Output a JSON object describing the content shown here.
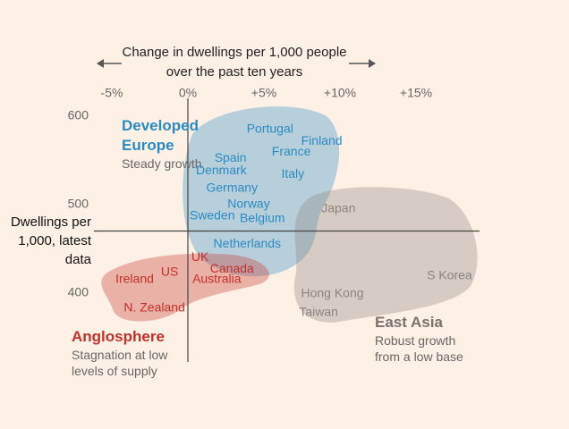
{
  "chart_data": {
    "type": "scatter",
    "x_title": "Change in dwellings per 1,000 people over the past ten years",
    "y_title": "Dwellings per 1,000, latest data",
    "xlim": [
      -6,
      19
    ],
    "xticks": [
      {
        "value": -5,
        "label": "-5%"
      },
      {
        "value": 0,
        "label": "0%"
      },
      {
        "value": 5,
        "label": "+5%"
      },
      {
        "value": 10,
        "label": "+10%"
      },
      {
        "value": 15,
        "label": "+15%"
      }
    ],
    "ylim": [
      250,
      620
    ],
    "yticks": [
      400,
      500,
      600
    ],
    "reference_lines": {
      "x": 0,
      "y": 470
    },
    "series": [
      {
        "name": "Developed Europe",
        "description": "Steady growth",
        "color": "#2a8bc4",
        "labels": [
          "Portugal",
          "Finland",
          "France",
          "Spain",
          "Denmark",
          "Italy",
          "Germany",
          "Norway",
          "Sweden",
          "Belgium",
          "Netherlands"
        ],
        "x": [
          5.4,
          8.8,
          6.8,
          2.8,
          2.2,
          6.9,
          2.9,
          4.0,
          1.6,
          4.9,
          3.9
        ],
        "values": [
          585,
          571,
          559,
          552,
          538,
          534,
          518,
          500,
          487,
          484,
          455
        ]
      },
      {
        "name": "Anglosphere",
        "description": "Stagnation at low levels of supply",
        "color": "#c4302b",
        "labels": [
          "UK",
          "Canada",
          "US",
          "Australia",
          "Ireland",
          "N. Zealand"
        ],
        "x": [
          0.8,
          2.9,
          -1.2,
          1.9,
          -3.5,
          -2.2
        ],
        "values": [
          440,
          427,
          423,
          415,
          415,
          383
        ]
      },
      {
        "name": "East Asia",
        "description": "Robust growth from a low base",
        "color": "#8c8480",
        "labels": [
          "Japan",
          "S Korea",
          "Hong Kong",
          "Taiwan"
        ],
        "x": [
          9.9,
          17.2,
          9.5,
          8.6
        ],
        "values": [
          495,
          419,
          399,
          378
        ]
      }
    ]
  }
}
